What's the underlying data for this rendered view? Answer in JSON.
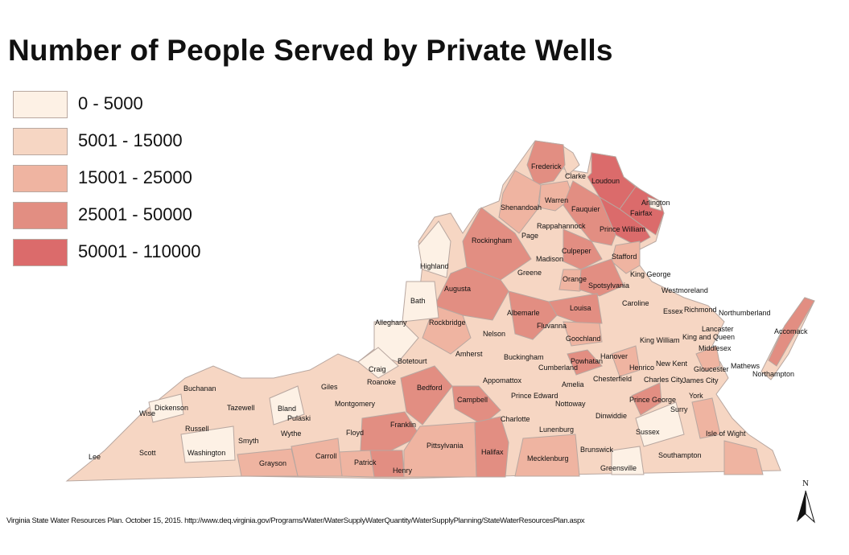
{
  "title": "Number of People Served by Private Wells",
  "legend": [
    {
      "label": "0 - 5000",
      "color": "#fdf1e5"
    },
    {
      "label": "5001 - 15000",
      "color": "#f6d6c3"
    },
    {
      "label": "15001 - 25000",
      "color": "#efb4a1"
    },
    {
      "label": "25001 - 50000",
      "color": "#e28e82"
    },
    {
      "label": "50001 - 110000",
      "color": "#db6b6b"
    }
  ],
  "counties": [
    {
      "name": "Frederick",
      "class": 3
    },
    {
      "name": "Clarke",
      "class": 1
    },
    {
      "name": "Loudoun",
      "class": 4
    },
    {
      "name": "Arlington",
      "class": 0
    },
    {
      "name": "Fairfax",
      "class": 4
    },
    {
      "name": "Prince William",
      "class": 4
    },
    {
      "name": "Warren",
      "class": 2
    },
    {
      "name": "Shenandoah",
      "class": 2
    },
    {
      "name": "Fauquier",
      "class": 3
    },
    {
      "name": "Rappahannock",
      "class": 1
    },
    {
      "name": "Page",
      "class": 1
    },
    {
      "name": "Rockingham",
      "class": 3
    },
    {
      "name": "Culpeper",
      "class": 3
    },
    {
      "name": "Stafford",
      "class": 2
    },
    {
      "name": "Madison",
      "class": 1
    },
    {
      "name": "Highland",
      "class": 0
    },
    {
      "name": "Greene",
      "class": 1
    },
    {
      "name": "King George",
      "class": 1
    },
    {
      "name": "Orange",
      "class": 2
    },
    {
      "name": "Spotsylvania",
      "class": 3
    },
    {
      "name": "Westmoreland",
      "class": 1
    },
    {
      "name": "Augusta",
      "class": 3
    },
    {
      "name": "Bath",
      "class": 0
    },
    {
      "name": "Albemarle",
      "class": 3
    },
    {
      "name": "Louisa",
      "class": 3
    },
    {
      "name": "Caroline",
      "class": 1
    },
    {
      "name": "Essex",
      "class": 1
    },
    {
      "name": "Richmond",
      "class": 1
    },
    {
      "name": "Northumberland",
      "class": 1
    },
    {
      "name": "Alleghany",
      "class": 0
    },
    {
      "name": "Rockbridge",
      "class": 2
    },
    {
      "name": "Fluvanna",
      "class": 1
    },
    {
      "name": "Lancaster",
      "class": 1
    },
    {
      "name": "Accomack",
      "class": 3
    },
    {
      "name": "Nelson",
      "class": 1
    },
    {
      "name": "Goochland",
      "class": 2
    },
    {
      "name": "Hanover",
      "class": 1
    },
    {
      "name": "King William",
      "class": 1
    },
    {
      "name": "King and Queen",
      "class": 1
    },
    {
      "name": "Middlesex",
      "class": 1
    },
    {
      "name": "Botetourt",
      "class": 1
    },
    {
      "name": "Amherst",
      "class": 1
    },
    {
      "name": "Buckingham",
      "class": 1
    },
    {
      "name": "Powhatan",
      "class": 3
    },
    {
      "name": "Cumberland",
      "class": 1
    },
    {
      "name": "Mathews",
      "class": 1
    },
    {
      "name": "Gloucester",
      "class": 2
    },
    {
      "name": "Northampton",
      "class": 1
    },
    {
      "name": "New Kent",
      "class": 1
    },
    {
      "name": "Henrico",
      "class": 2
    },
    {
      "name": "Craig",
      "class": 0
    },
    {
      "name": "Roanoke",
      "class": 1
    },
    {
      "name": "Appomattox",
      "class": 1
    },
    {
      "name": "Charles City",
      "class": 1
    },
    {
      "name": "James City",
      "class": 1
    },
    {
      "name": "Bedford",
      "class": 3
    },
    {
      "name": "Chesterfield",
      "class": 1
    },
    {
      "name": "Amelia",
      "class": 1
    },
    {
      "name": "Buchanan",
      "class": 1
    },
    {
      "name": "Giles",
      "class": 1
    },
    {
      "name": "Tazewell",
      "class": 1
    },
    {
      "name": "Campbell",
      "class": 3
    },
    {
      "name": "York",
      "class": 1
    },
    {
      "name": "Prince Edward",
      "class": 1
    },
    {
      "name": "Dickenson",
      "class": 0
    },
    {
      "name": "Montgomery",
      "class": 1
    },
    {
      "name": "Bland",
      "class": 0
    },
    {
      "name": "Nottoway",
      "class": 1
    },
    {
      "name": "Wise",
      "class": 1
    },
    {
      "name": "Prince George",
      "class": 3
    },
    {
      "name": "Pulaski",
      "class": 1
    },
    {
      "name": "Dinwiddie",
      "class": 1
    },
    {
      "name": "Surry",
      "class": 1
    },
    {
      "name": "Russell",
      "class": 1
    },
    {
      "name": "Charlotte",
      "class": 1
    },
    {
      "name": "Franklin",
      "class": 3
    },
    {
      "name": "Floyd",
      "class": 1
    },
    {
      "name": "Wythe",
      "class": 1
    },
    {
      "name": "Smyth",
      "class": 1
    },
    {
      "name": "Sussex",
      "class": 0
    },
    {
      "name": "Isle of Wight",
      "class": 2
    },
    {
      "name": "Lunenburg",
      "class": 1
    },
    {
      "name": "Washington",
      "class": 0
    },
    {
      "name": "Scott",
      "class": 1
    },
    {
      "name": "Pittsylvania",
      "class": 2
    },
    {
      "name": "Brunswick",
      "class": 1
    },
    {
      "name": "Southampton",
      "class": 1
    },
    {
      "name": "Lee",
      "class": 1
    },
    {
      "name": "Halifax",
      "class": 3
    },
    {
      "name": "Carroll",
      "class": 2
    },
    {
      "name": "Mecklenburg",
      "class": 2
    },
    {
      "name": "Patrick",
      "class": 2
    },
    {
      "name": "Grayson",
      "class": 2
    },
    {
      "name": "Greensville",
      "class": 0
    },
    {
      "name": "Henry",
      "class": 3
    }
  ],
  "north_arrow": {
    "label": "N"
  },
  "source": "Virginia State Water Resources Plan. October 15, 2015.  http://www.deq.virginia.gov/Programs/Water/WaterSupplyWaterQuantity/WaterSupplyPlanning/StateWaterResourcesPlan.aspx"
}
